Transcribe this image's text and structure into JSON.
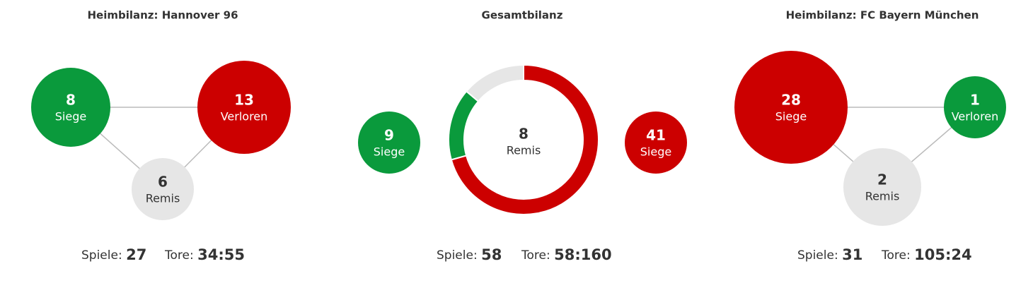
{
  "panels": [
    {
      "title": "Heimbilanz: Hannover 96",
      "nodes": [
        {
          "value": 8,
          "label": "Siege",
          "color": "#0a9a3c"
        },
        {
          "value": 13,
          "label": "Verloren",
          "color": "#cc0000"
        },
        {
          "value": 6,
          "label": "Remis",
          "color": "#e6e6e6"
        }
      ],
      "stats": [
        {
          "label": "Spiele:",
          "value": 27
        },
        {
          "label": "Tore:",
          "value": "34:55"
        }
      ]
    },
    {
      "title": "Gesamtbilanz",
      "nodes": [
        {
          "value": 9,
          "label": "Siege",
          "color": "#0a9a3c"
        },
        {
          "value": 8,
          "label": "Remis",
          "color": "#e6e6e6"
        },
        {
          "value": 41,
          "label": "Siege",
          "color": "#cc0000"
        }
      ],
      "stats": [
        {
          "label": "Spiele:",
          "value": 58
        },
        {
          "label": "Tore:",
          "value": "58:160"
        }
      ]
    },
    {
      "title": "Heimbilanz: FC Bayern München",
      "nodes": [
        {
          "value": 28,
          "label": "Siege",
          "color": "#cc0000"
        },
        {
          "value": 1,
          "label": "Verloren",
          "color": "#0a9a3c"
        },
        {
          "value": 2,
          "label": "Remis",
          "color": "#e6e6e6"
        }
      ],
      "stats": [
        {
          "label": "Spiele:",
          "value": 31
        },
        {
          "label": "Tore:",
          "value": "105:24"
        }
      ]
    }
  ]
}
